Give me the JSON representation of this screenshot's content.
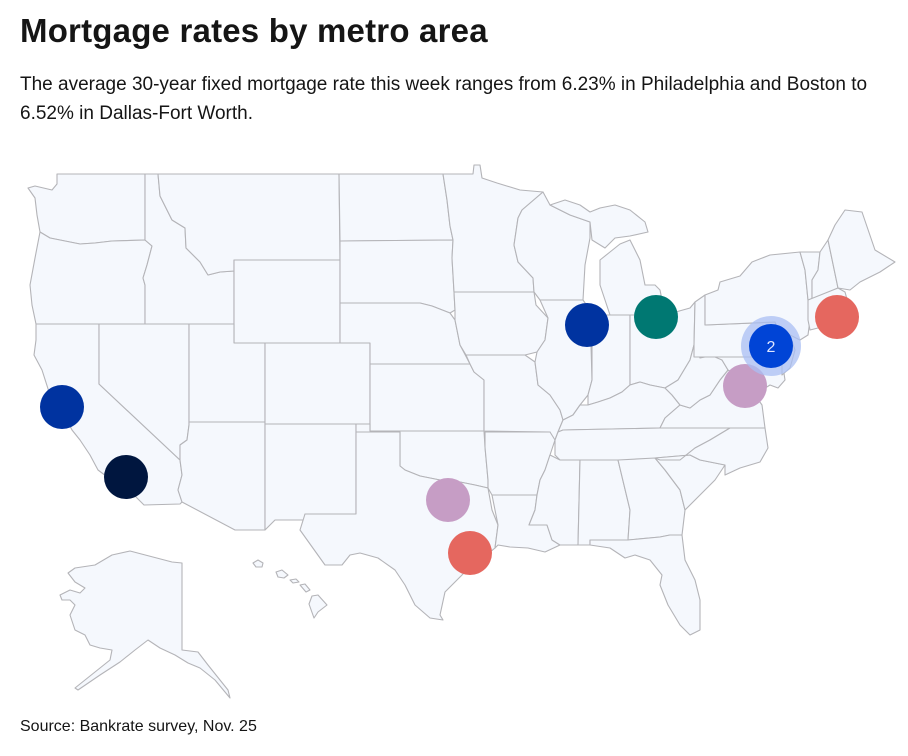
{
  "header": {
    "title": "Mortgage rates by metro area",
    "subtitle": "The average 30-year fixed mortgage rate this week ranges from 6.23% in Philadelphia and Boston to 6.52% in Dallas-Fort Worth."
  },
  "footer": {
    "source": "Source: Bankrate survey, Nov. 25"
  },
  "map": {
    "region": "United States",
    "background_land_color": "#f5f8fd",
    "border_color": "#b4b4b8",
    "markers": [
      {
        "id": "san-francisco",
        "region": "San Francisco area",
        "color": "#0033a0"
      },
      {
        "id": "los-angeles",
        "region": "Los Angeles area",
        "color": "#00163f"
      },
      {
        "id": "dallas-fort-worth",
        "region": "Dallas-Fort Worth area",
        "color": "#c69dc5"
      },
      {
        "id": "houston",
        "region": "Houston area",
        "color": "#e5675f"
      },
      {
        "id": "chicago",
        "region": "Chicago area",
        "color": "#0033a0"
      },
      {
        "id": "detroit",
        "region": "Detroit area",
        "color": "#007872"
      },
      {
        "id": "washington-dc",
        "region": "Washington D.C. area",
        "color": "#c69dc5"
      },
      {
        "id": "boston",
        "region": "Boston area",
        "color": "#e5675f"
      }
    ],
    "clusters": [
      {
        "id": "new-york-philadelphia",
        "region": "New York / Philadelphia area",
        "count": "2",
        "color": "#0044d6",
        "halo_color": "#a9bff3"
      }
    ]
  }
}
